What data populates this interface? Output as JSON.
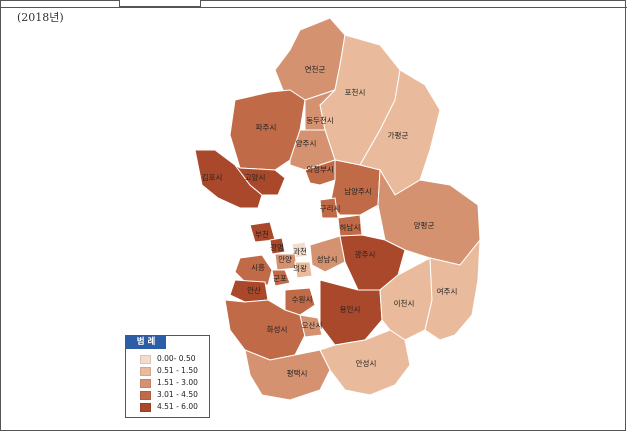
{
  "header": {
    "year": "(2018년)"
  },
  "legend": {
    "title": "범 례",
    "items": [
      {
        "label": "0.00- 0.50",
        "color": "#f3dccb"
      },
      {
        "label": "0.51 - 1.50",
        "color": "#e9bb9c"
      },
      {
        "label": "1.51 - 3.00",
        "color": "#d59271"
      },
      {
        "label": "3.01 - 4.50",
        "color": "#c06a47"
      },
      {
        "label": "4.51 - 6.00",
        "color": "#a9482a"
      }
    ]
  },
  "regions": [
    {
      "name": "연천군",
      "class": 2
    },
    {
      "name": "포천시",
      "class": 1
    },
    {
      "name": "파주시",
      "class": 3
    },
    {
      "name": "동두천시",
      "class": 2
    },
    {
      "name": "가평군",
      "class": 1
    },
    {
      "name": "양주시",
      "class": 2
    },
    {
      "name": "김포시",
      "class": 4
    },
    {
      "name": "고양시",
      "class": 4
    },
    {
      "name": "의정부시",
      "class": 3
    },
    {
      "name": "남양주시",
      "class": 3
    },
    {
      "name": "구리시",
      "class": 3
    },
    {
      "name": "하남시",
      "class": 3
    },
    {
      "name": "양평군",
      "class": 2
    },
    {
      "name": "부천",
      "class": 4
    },
    {
      "name": "광명",
      "class": 4
    },
    {
      "name": "과천",
      "class": 0
    },
    {
      "name": "안양",
      "class": 2
    },
    {
      "name": "의왕",
      "class": 1
    },
    {
      "name": "성남시",
      "class": 2
    },
    {
      "name": "광주시",
      "class": 4
    },
    {
      "name": "시흥",
      "class": 3
    },
    {
      "name": "군포",
      "class": 3
    },
    {
      "name": "안산",
      "class": 4
    },
    {
      "name": "수원시",
      "class": 3
    },
    {
      "name": "용인시",
      "class": 4
    },
    {
      "name": "이천시",
      "class": 1
    },
    {
      "name": "여주시",
      "class": 1
    },
    {
      "name": "화성시",
      "class": 3
    },
    {
      "name": "오산시",
      "class": 2
    },
    {
      "name": "평택시",
      "class": 2
    },
    {
      "name": "안성시",
      "class": 1
    }
  ]
}
